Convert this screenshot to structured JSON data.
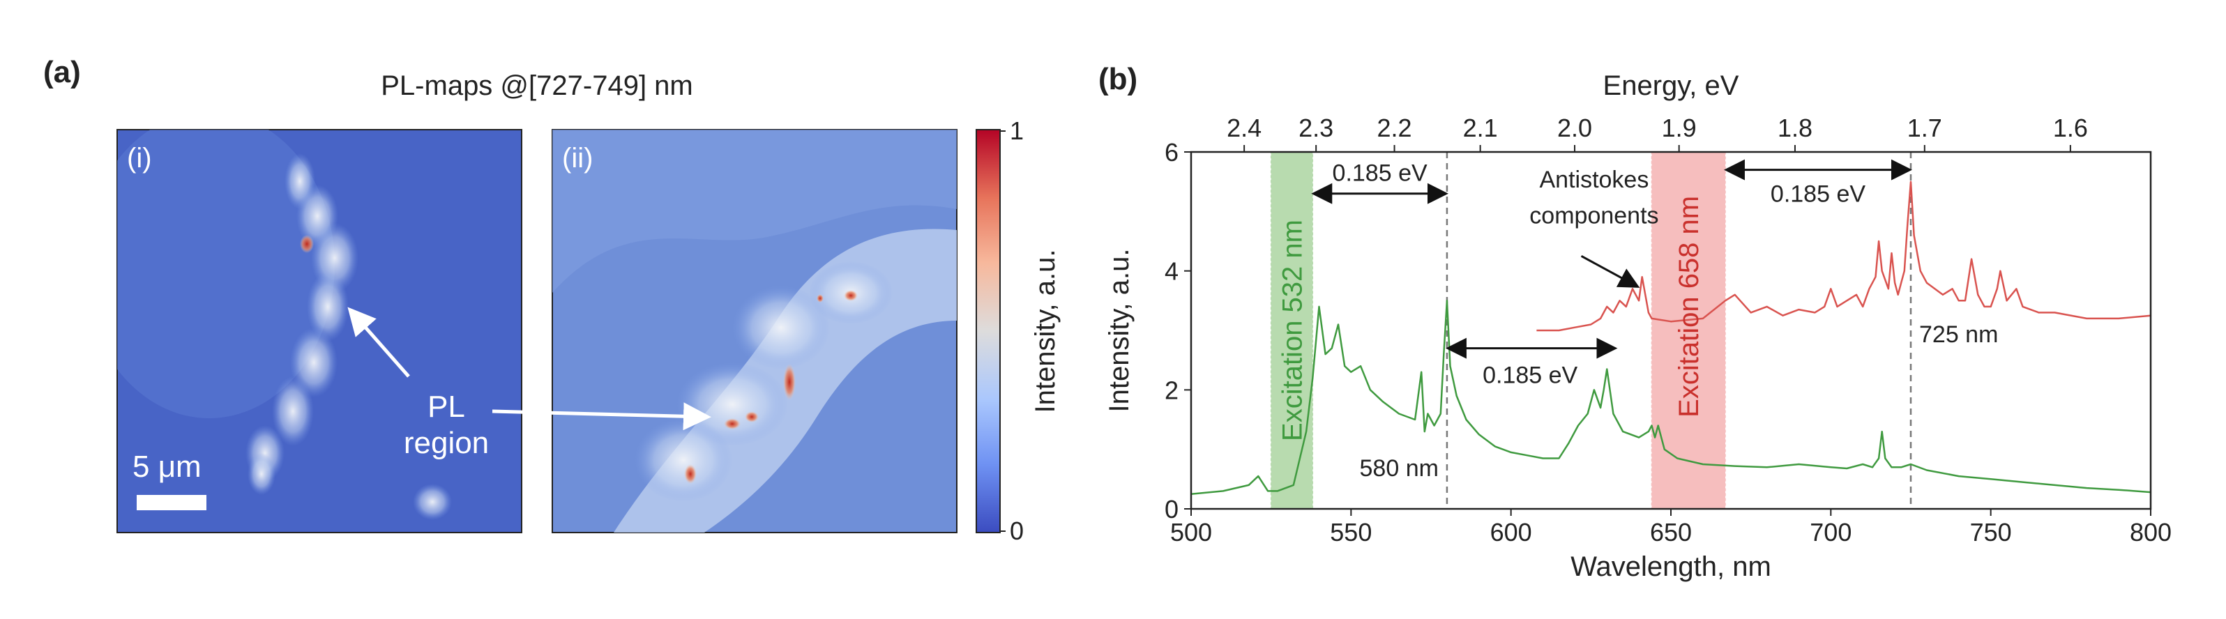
{
  "panel_a": {
    "label": "(a)",
    "title": "PL-maps @[727-749] nm",
    "map_i_label": "(i)",
    "map_ii_label": "(ii)",
    "scale_bar_text": "5 μm",
    "annotation": {
      "line1": "PL",
      "line2": "region"
    },
    "colorbar": {
      "title": "Intensity, a.u.",
      "max_label": "1",
      "min_label": "0",
      "colors": [
        "#3b4cc0",
        "#6f92f3",
        "#aac7fd",
        "#dddcdc",
        "#f7b89c",
        "#e7745b",
        "#b40426"
      ]
    }
  },
  "panel_b": {
    "label": "(b)",
    "annotations": {
      "delta_green": "0.185 eV",
      "delta_mid": "0.185 eV",
      "delta_red": "0.185 eV",
      "antistokes_line1": "Antistokes",
      "antistokes_line2": "components",
      "excitation_green": "Excitation 532 nm",
      "excitation_red": "Excitation 658 nm",
      "nm580": "580 nm",
      "nm725": "725 nm"
    }
  },
  "chart_data": {
    "type": "line",
    "xlabel": "Wavelength, nm",
    "ylabel": "Intensity, a.u.",
    "top_xlabel": "Energy, eV",
    "xlim": [
      500,
      800
    ],
    "ylim": [
      0,
      6
    ],
    "x_ticks": [
      500,
      550,
      600,
      650,
      700,
      750,
      800
    ],
    "y_ticks": [
      0,
      2,
      4,
      6
    ],
    "top_ticks": [
      2.4,
      2.3,
      2.2,
      2.1,
      2.0,
      1.9,
      1.8,
      1.7,
      1.6
    ],
    "excitation_bands": [
      {
        "name": "Excitation 532 nm",
        "range": [
          525,
          538
        ],
        "color": "#7fbf6f"
      },
      {
        "name": "Excitation 658 nm",
        "range": [
          644,
          667
        ],
        "color": "#f08a8a"
      }
    ],
    "reference_lines": [
      580,
      725
    ],
    "series": [
      {
        "name": "Excitation 532 nm spectrum",
        "color": "#3f9a3f",
        "x": [
          500,
          510,
          518,
          521,
          524,
          527,
          532,
          536,
          538,
          540,
          542,
          544,
          546,
          548,
          550,
          553,
          556,
          560,
          565,
          570,
          572,
          573,
          574,
          576,
          578,
          579,
          580,
          581,
          583,
          586,
          590,
          595,
          600,
          605,
          610,
          615,
          618,
          621,
          624,
          626,
          628,
          629,
          630,
          632,
          635,
          640,
          643,
          644,
          645,
          646,
          648,
          652,
          660,
          670,
          680,
          690,
          700,
          705,
          710,
          713,
          715,
          716,
          717,
          719,
          722,
          725,
          730,
          740,
          750,
          760,
          770,
          780,
          790,
          800
        ],
        "y": [
          0.25,
          0.3,
          0.4,
          0.55,
          0.3,
          0.3,
          0.4,
          1.3,
          2.2,
          3.4,
          2.6,
          2.7,
          3.1,
          2.4,
          2.3,
          2.4,
          2.0,
          1.8,
          1.6,
          1.5,
          2.3,
          1.3,
          1.6,
          1.4,
          1.6,
          2.6,
          3.5,
          2.4,
          1.9,
          1.5,
          1.25,
          1.05,
          0.95,
          0.9,
          0.85,
          0.85,
          1.1,
          1.4,
          1.6,
          2.0,
          1.7,
          2.0,
          2.35,
          1.6,
          1.3,
          1.2,
          1.3,
          1.4,
          1.2,
          1.4,
          1.0,
          0.85,
          0.75,
          0.72,
          0.7,
          0.75,
          0.7,
          0.68,
          0.75,
          0.7,
          0.85,
          1.3,
          0.85,
          0.7,
          0.7,
          0.75,
          0.65,
          0.55,
          0.5,
          0.45,
          0.4,
          0.35,
          0.32,
          0.28
        ]
      },
      {
        "name": "Excitation 658 nm spectrum",
        "color": "#d9534f",
        "x": [
          608,
          615,
          620,
          625,
          628,
          630,
          632,
          634,
          636,
          638,
          640,
          641,
          642,
          643,
          644,
          650,
          660,
          667,
          670,
          675,
          680,
          685,
          690,
          695,
          698,
          700,
          702,
          705,
          708,
          710,
          712,
          714,
          715,
          716,
          718,
          719,
          720,
          721,
          722,
          723,
          724,
          725,
          726,
          728,
          730,
          735,
          738,
          740,
          742,
          744,
          746,
          748,
          750,
          752,
          753,
          755,
          758,
          760,
          765,
          770,
          780,
          790,
          800
        ],
        "y": [
          3.0,
          3.0,
          3.05,
          3.1,
          3.2,
          3.4,
          3.3,
          3.5,
          3.4,
          3.7,
          3.5,
          3.9,
          3.6,
          3.3,
          3.2,
          3.15,
          3.2,
          3.5,
          3.6,
          3.3,
          3.4,
          3.25,
          3.35,
          3.3,
          3.4,
          3.7,
          3.4,
          3.5,
          3.6,
          3.4,
          3.7,
          3.9,
          4.5,
          4.0,
          3.7,
          4.3,
          3.8,
          3.6,
          3.8,
          4.0,
          4.8,
          5.5,
          4.6,
          4.0,
          3.8,
          3.6,
          3.7,
          3.5,
          3.5,
          4.2,
          3.6,
          3.4,
          3.4,
          3.7,
          4.0,
          3.5,
          3.7,
          3.4,
          3.3,
          3.3,
          3.2,
          3.2,
          3.25
        ]
      }
    ]
  }
}
